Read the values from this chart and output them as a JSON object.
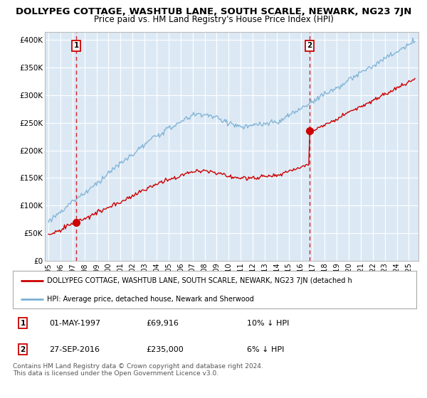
{
  "title": "DOLLYPEG COTTAGE, WASHTUB LANE, SOUTH SCARLE, NEWARK, NG23 7JN",
  "subtitle": "Price paid vs. HM Land Registry's House Price Index (HPI)",
  "title_fontsize": 9.5,
  "subtitle_fontsize": 8.5,
  "ylabel_ticks": [
    "£0",
    "£50K",
    "£100K",
    "£150K",
    "£200K",
    "£250K",
    "£300K",
    "£350K",
    "£400K"
  ],
  "ytick_values": [
    0,
    50000,
    100000,
    150000,
    200000,
    250000,
    300000,
    350000,
    400000
  ],
  "ylim": [
    0,
    415000
  ],
  "xlim_start": 1994.7,
  "xlim_end": 2025.8,
  "background_color": "#dce9f5",
  "plot_bg_color": "#dce9f5",
  "grid_color": "#ffffff",
  "red_line_color": "#cc0000",
  "blue_line_color": "#7ab0d4",
  "sale1_x": 1997.33,
  "sale1_y": 69916,
  "sale1_label": "1",
  "sale2_x": 2016.75,
  "sale2_y": 235000,
  "sale2_label": "2",
  "annotation_box_color": "#cc0000",
  "legend_label_red": "DOLLYPEG COTTAGE, WASHTUB LANE, SOUTH SCARLE, NEWARK, NG23 7JN (detached h",
  "legend_label_blue": "HPI: Average price, detached house, Newark and Sherwood",
  "table_rows": [
    [
      "1",
      "01-MAY-1997",
      "£69,916",
      "10% ↓ HPI"
    ],
    [
      "2",
      "27-SEP-2016",
      "£235,000",
      "6% ↓ HPI"
    ]
  ],
  "footer": "Contains HM Land Registry data © Crown copyright and database right 2024.\nThis data is licensed under the Open Government Licence v3.0.",
  "xtick_years": [
    1995,
    1996,
    1997,
    1998,
    1999,
    2000,
    2001,
    2002,
    2003,
    2004,
    2005,
    2006,
    2007,
    2008,
    2009,
    2010,
    2011,
    2012,
    2013,
    2014,
    2015,
    2016,
    2017,
    2018,
    2019,
    2020,
    2021,
    2022,
    2023,
    2024,
    2025
  ]
}
